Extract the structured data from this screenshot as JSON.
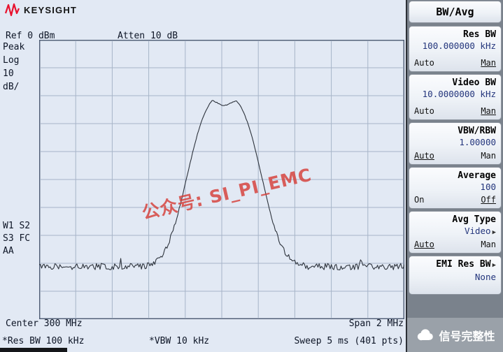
{
  "header": {
    "brand": "KEYSIGHT"
  },
  "screen": {
    "ref": "Ref 0 dBm",
    "atten": "Atten 10 dB",
    "left_labels": {
      "l0": "Peak",
      "l1": "Log",
      "l2": "10",
      "l3": "dB/"
    },
    "marker_labels": {
      "m0": "W1 S2",
      "m1": "S3 FC",
      "m2": "AA"
    },
    "center": "Center 300 MHz",
    "span": "Span 2 MHz",
    "res_bw": "*Res BW 100 kHz",
    "vbw": "*VBW 10 kHz",
    "sweep": "Sweep 5 ms (401 pts)",
    "watermark": "公众号: SI_PI_EMC"
  },
  "softkeys": {
    "menu_title": "BW/Avg",
    "buttons": [
      {
        "title": "Res BW",
        "value": "100.000000 kHz",
        "left": "Auto",
        "right": "Man",
        "active": "right",
        "title_arrow": false,
        "value_arrow": false
      },
      {
        "title": "Video BW",
        "value": "10.0000000 kHz",
        "left": "Auto",
        "right": "Man",
        "active": "right",
        "title_arrow": false,
        "value_arrow": false
      },
      {
        "title": "VBW/RBW",
        "value": "1.00000",
        "left": "Auto",
        "right": "Man",
        "active": "left",
        "title_arrow": false,
        "value_arrow": false
      },
      {
        "title": "Average",
        "value": "100",
        "left": "On",
        "right": "Off",
        "active": "right",
        "title_arrow": false,
        "value_arrow": false
      },
      {
        "title": "Avg Type",
        "value": "Video",
        "left": "Auto",
        "right": "Man",
        "active": "left",
        "title_arrow": false,
        "value_arrow": true
      },
      {
        "title": "EMI Res BW",
        "value": "None",
        "left": "",
        "right": "",
        "active": "",
        "title_arrow": true,
        "value_arrow": false
      }
    ]
  },
  "logo_badge": {
    "text": "信号完整性"
  },
  "chart_data": {
    "type": "line",
    "title": "Spectrum analyzer trace",
    "x_axis": {
      "center": "300 MHz",
      "span": "2 MHz",
      "divisions": 10
    },
    "y_axis": {
      "ref_level_dbm": 0,
      "db_per_div": 10,
      "divisions": 10
    },
    "signal": {
      "description": "Gaussian-shaped spectrum centered at 300 MHz with slight double-peak notch at top",
      "peak_dbm_approx": -21,
      "notch_dbm_approx": -24,
      "noise_floor_dbm_approx": -80
    },
    "trace_model": {
      "floor_frac": 0.812,
      "amplitude_frac": 0.61,
      "center_frac": 0.507,
      "sigma_frac": 0.085,
      "power": 1.4,
      "notch_depth_frac": 0.032,
      "notch_width_frac": 0.032,
      "noise_frac": 0.012,
      "points": 300,
      "seed": 9
    }
  }
}
